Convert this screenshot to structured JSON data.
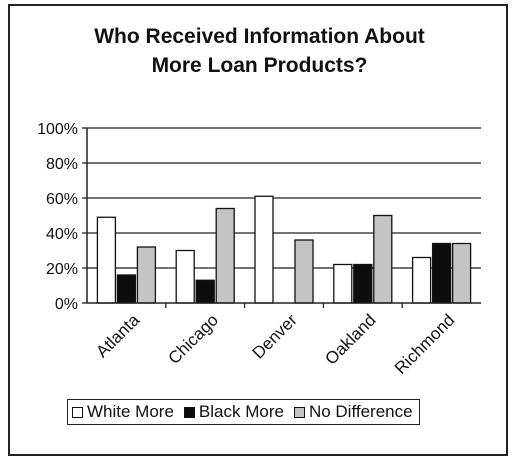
{
  "title_lines": [
    "Who Received Information About",
    "More Loan Products?"
  ],
  "chart_data": {
    "type": "bar",
    "title": "Who Received Information About More Loan Products?",
    "xlabel": "",
    "ylabel": "",
    "categories": [
      "Atlanta",
      "Chicago",
      "Denver",
      "Oakland",
      "Richmond"
    ],
    "series": [
      {
        "name": "White More",
        "values": [
          49,
          30,
          61,
          22,
          26
        ],
        "color": "#ffffff"
      },
      {
        "name": "Black More",
        "values": [
          16,
          13,
          0,
          22,
          34
        ],
        "color": "#0d0d0d"
      },
      {
        "name": "No Difference",
        "values": [
          32,
          54,
          36,
          50,
          34
        ],
        "color": "#c4c4c4"
      }
    ],
    "ylim": [
      0,
      100
    ],
    "yticks": [
      "0%",
      "20%",
      "40%",
      "60%",
      "80%",
      "100%"
    ],
    "grid": true,
    "legend_position": "bottom"
  }
}
